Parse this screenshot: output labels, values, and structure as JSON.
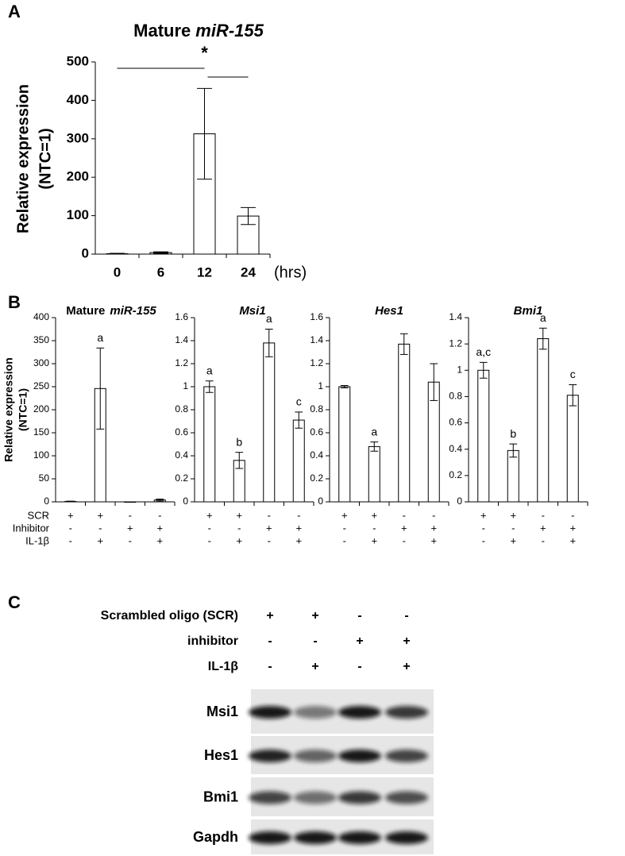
{
  "panel_labels": [
    "A",
    "B",
    "C"
  ],
  "chart_data": [
    {
      "type": "bar",
      "title": [
        "Mature",
        "miR-155"
      ],
      "title_italic": [
        false,
        true
      ],
      "ylabel": [
        "Relative expression",
        "(NTC=1)"
      ],
      "xlabel": "(hrs)",
      "annotation": "*",
      "categories": [
        "0",
        "6",
        "12",
        "24"
      ],
      "values": [
        1,
        4,
        313,
        99
      ],
      "errors": [
        1,
        2,
        118,
        22
      ],
      "ylim": [
        0,
        500
      ],
      "yticks": [
        0,
        100,
        200,
        300,
        400,
        500
      ],
      "color": "#ffffff"
    },
    {
      "type": "bar",
      "title": [
        "Mature",
        "miR-155"
      ],
      "title_italic": [
        false,
        true
      ],
      "ylabel": [
        "Relative expression",
        "(NTC=1)"
      ],
      "values": [
        1,
        246,
        0,
        4
      ],
      "errors": [
        0.5,
        88,
        0,
        2
      ],
      "annotations": [
        null,
        "a",
        null,
        null
      ],
      "ylim": [
        0,
        400
      ],
      "yticks": [
        0,
        50,
        100,
        150,
        200,
        250,
        300,
        350,
        400
      ],
      "color": "#ffffff"
    },
    {
      "type": "bar",
      "title": [
        "Msi1"
      ],
      "title_italic": [
        true
      ],
      "values": [
        1,
        0.36,
        1.38,
        0.71
      ],
      "errors": [
        0.05,
        0.07,
        0.12,
        0.07
      ],
      "annotations": [
        "a",
        "b",
        "a",
        "c"
      ],
      "ylim": [
        0,
        1.6
      ],
      "yticks": [
        0,
        0.2,
        0.4,
        0.6,
        0.8,
        1,
        1.2,
        1.4,
        1.6
      ],
      "color": "#ffffff"
    },
    {
      "type": "bar",
      "title": [
        "Hes1"
      ],
      "title_italic": [
        true
      ],
      "values": [
        1,
        0.48,
        1.37,
        1.04
      ],
      "errors": [
        0.01,
        0.04,
        0.09,
        0.16
      ],
      "annotations": [
        null,
        "a",
        null,
        null
      ],
      "ylim": [
        0,
        1.6
      ],
      "yticks": [
        0,
        0.2,
        0.4,
        0.6,
        0.8,
        1,
        1.2,
        1.4,
        1.6
      ],
      "color": "#ffffff"
    },
    {
      "type": "bar",
      "title": [
        "Bmi1"
      ],
      "title_italic": [
        true
      ],
      "values": [
        1,
        0.39,
        1.24,
        0.81
      ],
      "errors": [
        0.06,
        0.05,
        0.08,
        0.08
      ],
      "annotations": [
        "a,c",
        "b",
        "a",
        "c"
      ],
      "ylim": [
        0,
        1.4
      ],
      "yticks": [
        0,
        0.2,
        0.4,
        0.6,
        0.8,
        1,
        1.2,
        1.4
      ],
      "color": "#ffffff"
    }
  ],
  "conditions": [
    {
      "label": "SCR",
      "signs": [
        "+",
        "+",
        "-",
        "-"
      ]
    },
    {
      "label": "Inhibitor",
      "signs": [
        "-",
        "-",
        "+",
        "+"
      ]
    },
    {
      "label": "IL-1β",
      "signs": [
        "-",
        "+",
        "-",
        "+"
      ]
    }
  ],
  "blot": {
    "conditions": [
      {
        "label": "Scrambled oligo (SCR)",
        "signs": [
          "+",
          "+",
          "-",
          "-"
        ]
      },
      {
        "label": "inhibitor",
        "signs": [
          "-",
          "-",
          "+",
          "+"
        ]
      },
      {
        "label": "IL-1β",
        "signs": [
          "-",
          "+",
          "-",
          "+"
        ]
      }
    ],
    "proteins": [
      "Msi1",
      "Hes1",
      "Bmi1",
      "Gapdh"
    ]
  }
}
